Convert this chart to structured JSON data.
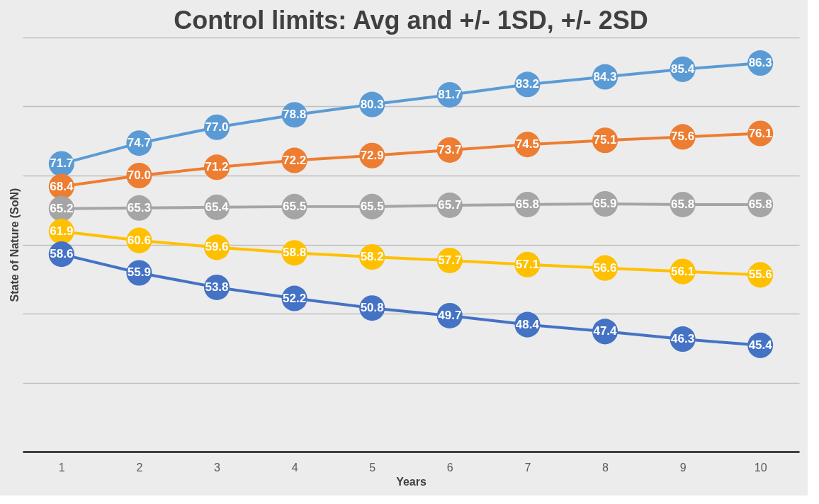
{
  "chart_data": {
    "type": "line",
    "title": "Control limits: Avg and +/- 1SD, +/- 2SD",
    "xlabel": "Years",
    "ylabel": "State of Nature (SoN)",
    "categories": [
      "1",
      "2",
      "3",
      "4",
      "5",
      "6",
      "7",
      "8",
      "9",
      "10"
    ],
    "series": [
      {
        "color": "#5b9bd5",
        "values": [
          71.7,
          74.7,
          77.0,
          78.8,
          80.3,
          81.7,
          83.2,
          84.3,
          85.4,
          86.3
        ],
        "value_labels": [
          "71.7",
          "74.7",
          "77.0",
          "78.8",
          "80.3",
          "81.7",
          "83.2",
          "84.3",
          "85.4",
          "86.3"
        ]
      },
      {
        "color": "#ed7d31",
        "values": [
          68.4,
          70.0,
          71.2,
          72.2,
          72.9,
          73.7,
          74.5,
          75.1,
          75.6,
          76.1
        ],
        "value_labels": [
          "68.4",
          "70.0",
          "71.2",
          "72.2",
          "72.9",
          "73.7",
          "74.5",
          "75.1",
          "75.6",
          "76.1"
        ]
      },
      {
        "color": "#a5a5a5",
        "values": [
          65.2,
          65.3,
          65.4,
          65.5,
          65.5,
          65.7,
          65.8,
          65.9,
          65.8,
          65.8
        ],
        "value_labels": [
          "65.2",
          "65.3",
          "65.4",
          "65.5",
          "65.5",
          "65.7",
          "65.8",
          "65.9",
          "65.8",
          "65.8"
        ]
      },
      {
        "color": "#ffc000",
        "values": [
          61.9,
          60.6,
          59.6,
          58.8,
          58.2,
          57.7,
          57.1,
          56.6,
          56.1,
          55.6
        ],
        "value_labels": [
          "61.9",
          "60.6",
          "59.6",
          "58.8",
          "58.2",
          "57.7",
          "57.1",
          "56.6",
          "56.1",
          "55.6"
        ]
      },
      {
        "color": "#4472c4",
        "values": [
          58.6,
          55.9,
          53.8,
          52.2,
          50.8,
          49.7,
          48.4,
          47.4,
          46.3,
          45.4
        ],
        "value_labels": [
          "58.6",
          "55.9",
          "53.8",
          "52.2",
          "50.8",
          "49.7",
          "48.4",
          "47.4",
          "46.3",
          "45.4"
        ]
      }
    ],
    "ylim": [
      30,
      90
    ],
    "yticks": [
      {
        "value": 30,
        "label": null
      },
      {
        "value": 40,
        "label": null
      },
      {
        "value": 50,
        "label": null
      },
      {
        "value": 60,
        "label": null
      },
      {
        "value": 70,
        "label": null
      },
      {
        "value": 80,
        "label": null
      },
      {
        "value": 90,
        "label": null
      }
    ],
    "tick_labels": "x",
    "grid": "y",
    "legend": false,
    "marker": "circle",
    "line_style": "solid"
  }
}
